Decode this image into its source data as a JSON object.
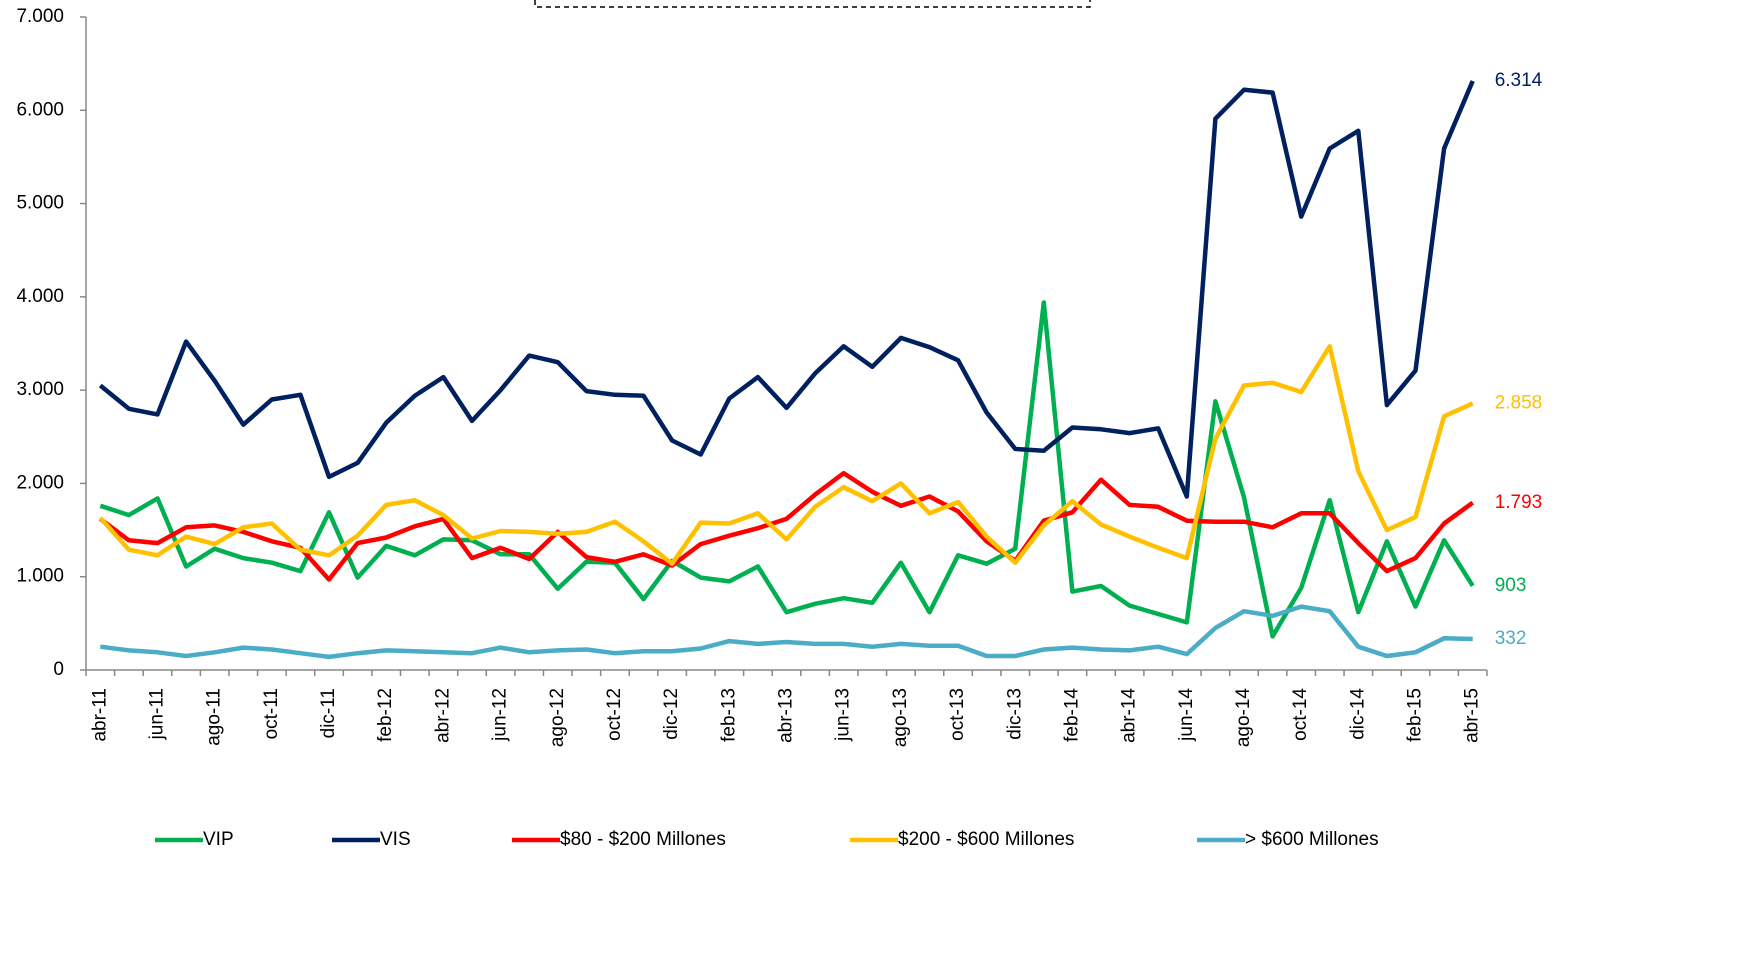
{
  "chart_data": {
    "type": "line",
    "categories": [
      "abr-11",
      null,
      "jun-11",
      null,
      "ago-11",
      null,
      "oct-11",
      null,
      "dic-11",
      null,
      "feb-12",
      null,
      "abr-12",
      null,
      "jun-12",
      null,
      "ago-12",
      null,
      "oct-12",
      null,
      "dic-12",
      null,
      "feb-13",
      null,
      "abr-13",
      null,
      "jun-13",
      null,
      "ago-13",
      null,
      "oct-13",
      null,
      "dic-13",
      null,
      "feb-14",
      null,
      "abr-14",
      null,
      "jun-14",
      null,
      "ago-14",
      null,
      "oct-14",
      null,
      "dic-14",
      null,
      "feb-15",
      null,
      "abr-15"
    ],
    "ylim": [
      0,
      7000
    ],
    "yticks": [
      0,
      {
        "value": 1000,
        "label": "1.000"
      },
      {
        "value": 2000,
        "label": "2.000"
      },
      {
        "value": 3000,
        "label": "3.000"
      },
      {
        "value": 4000,
        "label": "4.000"
      },
      {
        "value": 5000,
        "label": "5.000"
      },
      {
        "value": 6000,
        "label": "6.000"
      },
      {
        "value": 7000,
        "label": "7.000"
      }
    ],
    "grid": false,
    "legend": "bottom",
    "series": [
      {
        "name": "VIP",
        "color": "#00b050",
        "values": [
          1760,
          1660,
          1840,
          1110,
          1300,
          1200,
          1150,
          1060,
          1690,
          990,
          1330,
          1230,
          1400,
          1390,
          1240,
          1240,
          870,
          1160,
          1150,
          760,
          1170,
          990,
          950,
          1110,
          620,
          710,
          770,
          720,
          1150,
          620,
          1230,
          1140,
          1300,
          3940,
          840,
          900,
          690,
          600,
          510,
          2880,
          1850,
          360,
          880,
          1820,
          620,
          1380,
          680,
          1390,
          903
        ],
        "value_labels": [
          null,
          null,
          null,
          null,
          null,
          null,
          null,
          null,
          null,
          null,
          null,
          null,
          null,
          null,
          null,
          null,
          null,
          null,
          null,
          null,
          null,
          null,
          null,
          null,
          null,
          null,
          null,
          null,
          null,
          null,
          null,
          null,
          null,
          null,
          null,
          null,
          null,
          null,
          null,
          null,
          null,
          null,
          null,
          null,
          null,
          null,
          null,
          null,
          "903"
        ]
      },
      {
        "name": "VIS",
        "color": "#002060",
        "values": [
          3050,
          2800,
          2740,
          3520,
          3100,
          2630,
          2900,
          2950,
          2070,
          2220,
          2650,
          2940,
          3140,
          2670,
          3000,
          3370,
          3300,
          2990,
          2950,
          2940,
          2460,
          2310,
          2910,
          3140,
          2810,
          3180,
          3470,
          3250,
          3560,
          3460,
          3320,
          2760,
          2370,
          2350,
          2600,
          2580,
          2540,
          2590,
          1860,
          5910,
          6220,
          6190,
          4860,
          5590,
          5780,
          2840,
          3210,
          5590,
          6314
        ],
        "value_labels": [
          null,
          null,
          null,
          null,
          null,
          null,
          null,
          null,
          null,
          null,
          null,
          null,
          null,
          null,
          null,
          null,
          null,
          null,
          null,
          null,
          null,
          null,
          null,
          null,
          null,
          null,
          null,
          null,
          null,
          null,
          null,
          null,
          null,
          null,
          null,
          null,
          null,
          null,
          null,
          null,
          null,
          null,
          null,
          null,
          null,
          null,
          null,
          null,
          "6.314"
        ]
      },
      {
        "name": "$80 - $200 Millones",
        "color": "#ff0000",
        "values": [
          1620,
          1390,
          1360,
          1530,
          1550,
          1480,
          1380,
          1310,
          970,
          1360,
          1420,
          1540,
          1620,
          1200,
          1310,
          1190,
          1480,
          1210,
          1160,
          1240,
          1120,
          1350,
          1440,
          1520,
          1620,
          1880,
          2110,
          1910,
          1760,
          1860,
          1700,
          1380,
          1170,
          1600,
          1690,
          2040,
          1770,
          1750,
          1600,
          1590,
          1590,
          1530,
          1680,
          1680,
          1360,
          1060,
          1200,
          1570,
          1793
        ],
        "value_labels": [
          null,
          null,
          null,
          null,
          null,
          null,
          null,
          null,
          null,
          null,
          null,
          null,
          null,
          null,
          null,
          null,
          null,
          null,
          null,
          null,
          null,
          null,
          null,
          null,
          null,
          null,
          null,
          null,
          null,
          null,
          null,
          null,
          null,
          null,
          null,
          null,
          null,
          null,
          null,
          null,
          null,
          null,
          null,
          null,
          null,
          null,
          null,
          null,
          "1.793"
        ]
      },
      {
        "name": "$200 - $600 Millones",
        "color": "#ffc000",
        "values": [
          1630,
          1290,
          1230,
          1430,
          1350,
          1530,
          1570,
          1290,
          1230,
          1440,
          1770,
          1820,
          1660,
          1410,
          1490,
          1480,
          1460,
          1480,
          1590,
          1380,
          1140,
          1580,
          1570,
          1680,
          1400,
          1750,
          1960,
          1810,
          2000,
          1680,
          1800,
          1430,
          1150,
          1550,
          1810,
          1560,
          1430,
          1310,
          1200,
          2480,
          3050,
          3080,
          2980,
          3470,
          2130,
          1500,
          1640,
          2720,
          2858
        ],
        "value_labels": [
          null,
          null,
          null,
          null,
          null,
          null,
          null,
          null,
          null,
          null,
          null,
          null,
          null,
          null,
          null,
          null,
          null,
          null,
          null,
          null,
          null,
          null,
          null,
          null,
          null,
          null,
          null,
          null,
          null,
          null,
          null,
          null,
          null,
          null,
          null,
          null,
          null,
          null,
          null,
          null,
          null,
          null,
          null,
          null,
          null,
          null,
          null,
          null,
          "2.858"
        ]
      },
      {
        "name": "> $600 Millones",
        "color": "#4bacc6",
        "values": [
          250,
          210,
          190,
          150,
          190,
          240,
          220,
          180,
          140,
          180,
          210,
          200,
          190,
          180,
          240,
          190,
          210,
          220,
          180,
          200,
          200,
          230,
          310,
          280,
          300,
          280,
          280,
          250,
          280,
          260,
          260,
          150,
          150,
          220,
          240,
          220,
          210,
          250,
          170,
          450,
          630,
          580,
          680,
          630,
          250,
          150,
          190,
          340,
          332
        ],
        "value_labels": [
          null,
          null,
          null,
          null,
          null,
          null,
          null,
          null,
          null,
          null,
          null,
          null,
          null,
          null,
          null,
          null,
          null,
          null,
          null,
          null,
          null,
          null,
          null,
          null,
          null,
          null,
          null,
          null,
          null,
          null,
          null,
          null,
          null,
          null,
          null,
          null,
          null,
          null,
          null,
          null,
          null,
          null,
          null,
          null,
          null,
          null,
          null,
          null,
          "332"
        ]
      }
    ]
  }
}
